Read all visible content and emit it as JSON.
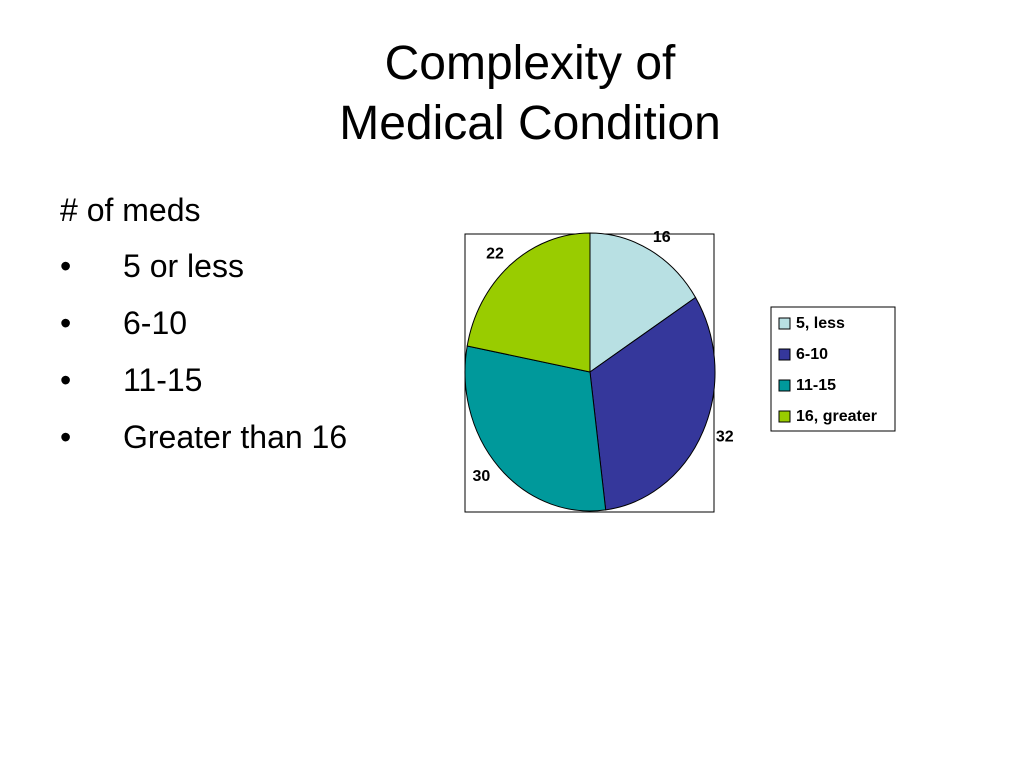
{
  "slide": {
    "title_line1": "Complexity of",
    "title_line2": "Medical Condition",
    "body_heading": "# of meds",
    "bullet_char": "•",
    "bullets": [
      "5 or less",
      "6-10",
      "11-15",
      "Greater than 16"
    ]
  },
  "chart_data": {
    "type": "pie",
    "categories": [
      "5, less",
      "6-10",
      "11-15",
      "16, greater"
    ],
    "values": [
      16,
      32,
      30,
      22
    ],
    "colors": [
      "#b8e0e3",
      "#35379b",
      "#00999b",
      "#99cc00"
    ],
    "data_labels": [
      "16",
      "32",
      "30",
      "22"
    ],
    "legend_placement": "right",
    "plot_area_border": true,
    "title": ""
  }
}
